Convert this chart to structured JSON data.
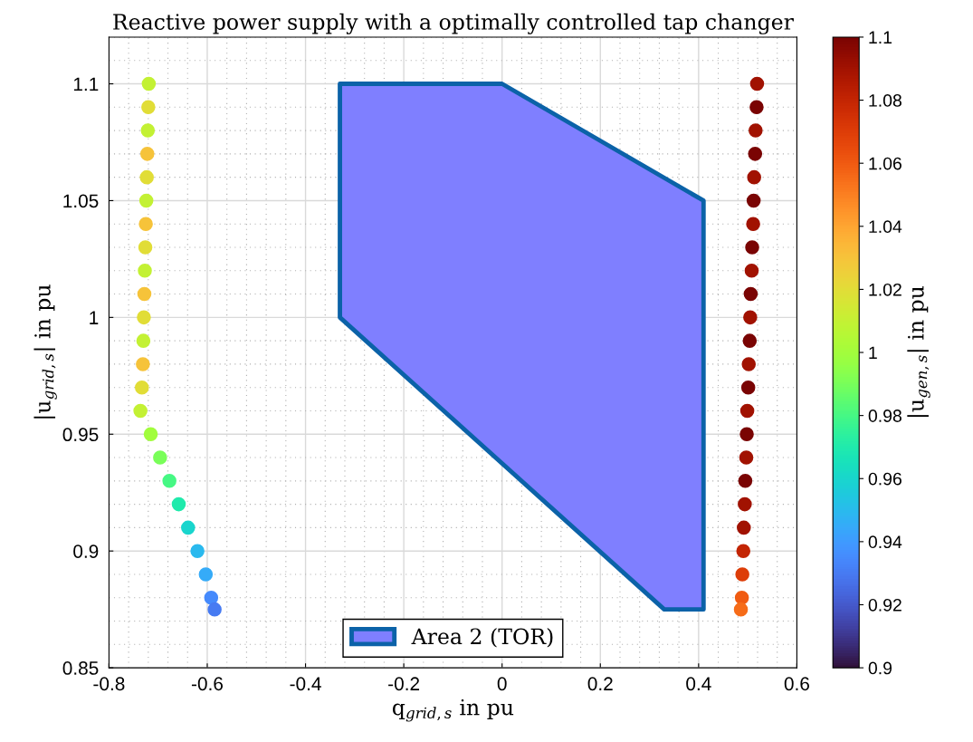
{
  "chart_data": {
    "type": "scatter",
    "title": "Reactive power supply with a optimally controlled tap changer",
    "xlabel": "q$_{grid,s}$ in pu",
    "ylabel": "|u$_{grid,s}$| in pu",
    "clabel": "|u$_{gen,s}$| in pu",
    "xlim": [
      -0.8,
      0.6
    ],
    "ylim": [
      0.85,
      1.12
    ],
    "xticks": [
      -0.8,
      -0.6,
      -0.4,
      -0.2,
      0,
      0.2,
      0.4,
      0.6
    ],
    "yticks": [
      0.85,
      0.9,
      0.95,
      1,
      1.05,
      1.1
    ],
    "clim": [
      0.9,
      1.1
    ],
    "cticks": [
      0.9,
      0.92,
      0.94,
      0.96,
      0.98,
      1,
      1.02,
      1.04,
      1.06,
      1.08,
      1.1
    ],
    "grid": true,
    "legend": "bottom",
    "series": [
      {
        "type": "area",
        "name": "Area 2 (TOR)",
        "color": "#7f7fff",
        "x": [
          -0.33,
          0,
          0.41,
          0.41,
          0.33,
          -0.33
        ],
        "values": [
          1.1,
          1.1,
          1.05,
          0.875,
          0.875,
          1.0
        ]
      },
      {
        "marker": "circle",
        "x": [
          -0.719,
          -0.72,
          -0.721,
          -0.722,
          -0.723,
          -0.724,
          -0.725,
          -0.726,
          -0.727,
          -0.728,
          -0.729,
          -0.73,
          -0.731,
          -0.733,
          -0.736,
          -0.715,
          -0.696,
          -0.677,
          -0.658,
          -0.639,
          -0.62,
          -0.603,
          -0.592,
          -0.585
        ],
        "values": [
          1.1,
          1.09,
          1.08,
          1.07,
          1.06,
          1.05,
          1.04,
          1.03,
          1.02,
          1.01,
          1.0,
          0.99,
          0.98,
          0.97,
          0.96,
          0.95,
          0.94,
          0.93,
          0.92,
          0.91,
          0.9,
          0.89,
          0.88,
          0.875
        ],
        "colors": [
          "#c3f134",
          "#e1dd37",
          "#c3f134",
          "#f6c33a",
          "#e1dd37",
          "#c3f134",
          "#f6c33a",
          "#e1dd37",
          "#c3f134",
          "#f6c33a",
          "#e1dd37",
          "#c3f134",
          "#f6c33a",
          "#e1dd37",
          "#c3f134",
          "#a1fd3d",
          "#79fe59",
          "#46f884",
          "#20eaac",
          "#19d5cd",
          "#2ab9ee",
          "#35abf8",
          "#458afc",
          "#477bf2"
        ],
        "cvalues": [
          1.01,
          1.02,
          1.01,
          1.03,
          1.02,
          1.01,
          1.03,
          1.02,
          1.01,
          1.03,
          1.02,
          1.01,
          1.03,
          1.02,
          1.01,
          1.0,
          0.99,
          0.98,
          0.97,
          0.96,
          0.95,
          0.945,
          0.935,
          0.93
        ]
      },
      {
        "marker": "circle",
        "x": [
          0.519,
          0.518,
          0.516,
          0.515,
          0.513,
          0.512,
          0.511,
          0.509,
          0.508,
          0.506,
          0.505,
          0.504,
          0.502,
          0.501,
          0.499,
          0.498,
          0.497,
          0.495,
          0.494,
          0.492,
          0.491,
          0.489,
          0.488,
          0.486
        ],
        "values": [
          1.1,
          1.09,
          1.08,
          1.07,
          1.06,
          1.05,
          1.04,
          1.03,
          1.02,
          1.01,
          1.0,
          0.99,
          0.98,
          0.97,
          0.96,
          0.95,
          0.94,
          0.93,
          0.92,
          0.91,
          0.9,
          0.89,
          0.88,
          0.875
        ],
        "colors": [
          "#a11201",
          "#7a0403",
          "#a11201",
          "#7a0403",
          "#a11201",
          "#7a0403",
          "#a11201",
          "#7a0403",
          "#a11201",
          "#7a0403",
          "#a11201",
          "#7a0403",
          "#a11201",
          "#7a0403",
          "#a11201",
          "#7a0403",
          "#a11201",
          "#7a0403",
          "#a11201",
          "#a11201",
          "#c32503",
          "#dd3d08",
          "#f05b12",
          "#f66c19"
        ],
        "cvalues": [
          1.09,
          1.1,
          1.09,
          1.1,
          1.09,
          1.1,
          1.09,
          1.1,
          1.09,
          1.1,
          1.09,
          1.1,
          1.09,
          1.1,
          1.09,
          1.1,
          1.09,
          1.1,
          1.09,
          1.09,
          1.08,
          1.07,
          1.06,
          1.055
        ]
      }
    ]
  }
}
